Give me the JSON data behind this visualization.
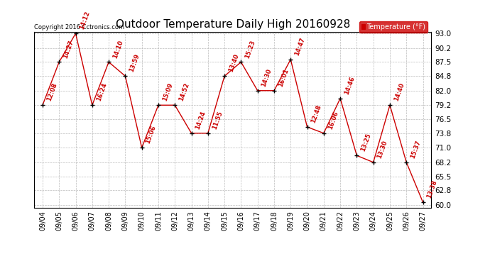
{
  "title": "Outdoor Temperature Daily High 20160928",
  "copyright": "Copyright 2016 Cctronics.com",
  "legend_label": "Temperature (°F)",
  "x_labels": [
    "09/04",
    "09/05",
    "09/06",
    "09/07",
    "09/08",
    "09/09",
    "09/10",
    "09/11",
    "09/12",
    "09/13",
    "09/14",
    "09/15",
    "09/16",
    "09/17",
    "09/18",
    "09/19",
    "09/20",
    "09/21",
    "09/22",
    "09/23",
    "09/24",
    "09/25",
    "09/26",
    "09/27"
  ],
  "y_values": [
    79.2,
    87.5,
    93.0,
    79.2,
    87.5,
    84.8,
    71.0,
    79.2,
    79.2,
    73.8,
    73.8,
    84.8,
    87.5,
    82.0,
    82.0,
    88.0,
    75.0,
    73.8,
    80.5,
    69.5,
    68.2,
    79.2,
    68.2,
    60.5
  ],
  "time_labels": [
    "12:08",
    "14:27",
    "14:12",
    "16:24",
    "14:10",
    "13:59",
    "15:06",
    "15:09",
    "14:52",
    "14:24",
    "11:55",
    "13:40",
    "15:23",
    "14:30",
    "16:01",
    "14:47",
    "12:48",
    "16:06",
    "14:46",
    "13:25",
    "13:30",
    "14:40",
    "15:37",
    "13:38"
  ],
  "y_min": 60.0,
  "y_max": 93.0,
  "y_ticks": [
    60.0,
    62.8,
    65.5,
    68.2,
    71.0,
    73.8,
    76.5,
    79.2,
    82.0,
    84.8,
    87.5,
    90.2,
    93.0
  ],
  "line_color": "#cc0000",
  "marker_color": "#000000",
  "bg_color": "#ffffff",
  "grid_color": "#bbbbbb",
  "title_fontsize": 11,
  "legend_bg": "#cc0000",
  "legend_text_color": "#ffffff"
}
